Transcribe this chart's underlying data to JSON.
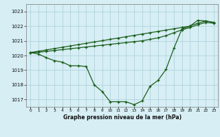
{
  "title": "Graphe pression niveau de la mer (hPa)",
  "background_color": "#d6eef4",
  "grid_color": "#aacdd8",
  "line_color": "#1a5c1a",
  "x_labels": [
    "0",
    "1",
    "2",
    "3",
    "4",
    "5",
    "6",
    "7",
    "8",
    "9",
    "10",
    "11",
    "12",
    "13",
    "14",
    "15",
    "16",
    "17",
    "18",
    "19",
    "20",
    "21",
    "22",
    "23"
  ],
  "ylim": [
    1016.5,
    1023.5
  ],
  "yticks": [
    1017,
    1018,
    1019,
    1020,
    1021,
    1022,
    1023
  ],
  "series": {
    "main": [
      1020.2,
      1020.1,
      1019.85,
      1019.65,
      1019.55,
      1019.3,
      1019.3,
      1019.25,
      1018.0,
      1017.55,
      1016.85,
      1016.85,
      1016.85,
      1016.65,
      1016.9,
      1017.9,
      1018.3,
      1019.05,
      1020.5,
      1021.8,
      1022.0,
      1022.4,
      1022.35,
      1022.25
    ],
    "upper": [
      1020.2,
      1020.29,
      1020.38,
      1020.47,
      1020.56,
      1020.65,
      1020.74,
      1020.83,
      1020.92,
      1021.01,
      1021.1,
      1021.19,
      1021.28,
      1021.37,
      1021.46,
      1021.55,
      1021.64,
      1021.73,
      1021.82,
      1021.91,
      1022.0,
      1022.2,
      1022.35,
      1022.25
    ],
    "middle": [
      1020.2,
      1020.22,
      1020.28,
      1020.34,
      1020.4,
      1020.46,
      1020.52,
      1020.58,
      1020.64,
      1020.7,
      1020.76,
      1020.82,
      1020.88,
      1020.94,
      1021.0,
      1021.1,
      1021.2,
      1021.35,
      1021.55,
      1021.75,
      1021.9,
      1022.1,
      1022.25,
      1022.2
    ]
  }
}
